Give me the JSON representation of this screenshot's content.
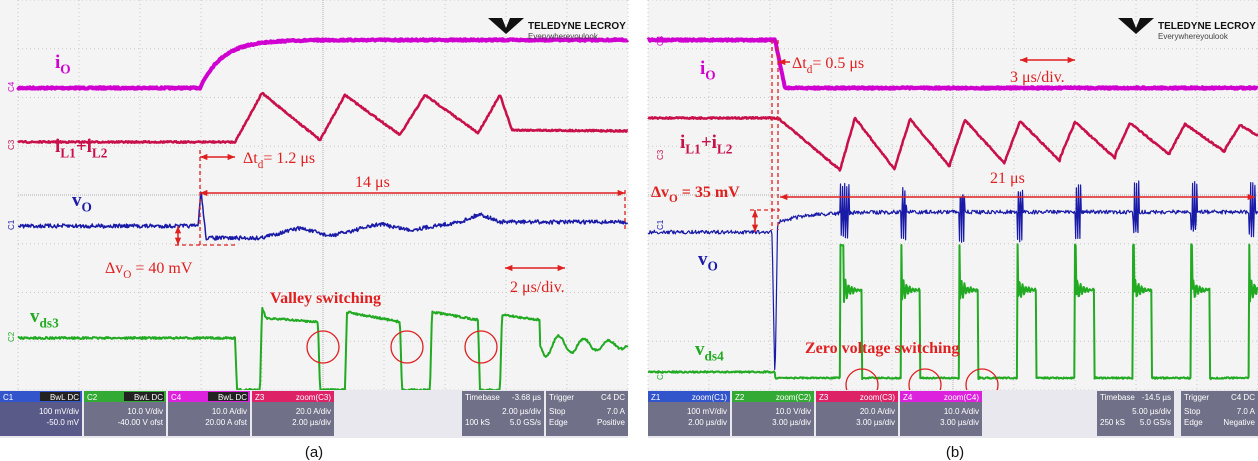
{
  "panels": [
    {
      "caption": "(a)",
      "logo": {
        "brand": "TELEDYNE LECROY",
        "tagline": "Everywhereyoulook"
      },
      "channel_markers": [
        "C4",
        "C3",
        "C1",
        "C2"
      ],
      "traces": [
        [
          "i",
          "O"
        ],
        [
          "i",
          "L1",
          "+i",
          "L2"
        ],
        [
          "v",
          "O"
        ],
        [
          "v",
          "ds3"
        ]
      ],
      "annotations": [
        [
          "Δt",
          "d",
          "= 1.2 μs"
        ],
        [
          "14 μs"
        ],
        [
          "Δv",
          "O",
          " = 40 mV"
        ],
        [
          "Valley switching"
        ],
        [
          "2 μs/div."
        ]
      ],
      "status": {
        "channels": [
          {
            "id": "C1",
            "mode": "BwL DC",
            "lines": [
              "100 mV/div",
              "-50.0 mV"
            ]
          },
          {
            "id": "C2",
            "mode": "BwL DC",
            "lines": [
              "10.0 V/div",
              "-40.00 V ofst"
            ]
          },
          {
            "id": "C4",
            "mode": "BwL DC",
            "lines": [
              "10.0 A/div",
              "20.00 A ofst"
            ]
          },
          {
            "id": "Z3",
            "mode": "zoom(C3)",
            "lines": [
              "20.0 A/div",
              "2.00 µs/div"
            ]
          }
        ],
        "timebase": {
          "title": "Timebase",
          "value": "-3.68 µs",
          "rows": [
            {
              "right": "2.00 µs/div"
            },
            {
              "left": "100 kS",
              "right": "5.0 GS/s"
            }
          ]
        },
        "trigger": {
          "title": "Trigger",
          "value": "C4 DC",
          "rows": [
            {
              "left": "Stop",
              "right": "7.0 A"
            },
            {
              "left": "Edge",
              "right": "Positive"
            }
          ]
        }
      }
    },
    {
      "caption": "(b)",
      "logo": {
        "brand": "TELEDYNE LECROY",
        "tagline": "Everywhereyoulook"
      },
      "channel_markers": [
        "C4",
        "C3",
        "C1",
        "C2"
      ],
      "traces": [
        [
          "i",
          "O"
        ],
        [
          "i",
          "L1",
          "+i",
          "L2"
        ],
        [
          "v",
          "O"
        ],
        [
          "v",
          "ds4"
        ]
      ],
      "annotations": [
        [
          "Δt",
          "d",
          "= 0.5 μs"
        ],
        [
          "3 μs/div."
        ],
        [
          "Δv",
          "O",
          " = 35 mV"
        ],
        [
          "21 μs"
        ],
        [
          "Zero voltage switching"
        ]
      ],
      "status": {
        "channels": [
          {
            "id": "Z1",
            "mode": "zoom(C1)",
            "lines": [
              "100 mV/div",
              "2.00 µs/div"
            ]
          },
          {
            "id": "Z2",
            "mode": "zoom(C2)",
            "lines": [
              "10.0 V/div",
              "3.00 µs/div"
            ]
          },
          {
            "id": "Z3",
            "mode": "zoom(C3)",
            "lines": [
              "20.0 A/div",
              "3.00 µs/div"
            ]
          },
          {
            "id": "Z4",
            "mode": "zoom(C4)",
            "lines": [
              "10.0 A/div",
              "3.00 µs/div"
            ]
          }
        ],
        "timebase": {
          "title": "Timebase",
          "value": "-14.5 µs",
          "rows": [
            {
              "right": "5.00 µs/div"
            },
            {
              "left": "250 kS",
              "right": "5.0 GS/s"
            }
          ]
        },
        "trigger": {
          "title": "Trigger",
          "value": "C4 DC",
          "rows": [
            {
              "left": "Stop",
              "right": "7.0 A"
            },
            {
              "left": "Edge",
              "right": "Negative"
            }
          ]
        }
      }
    }
  ]
}
